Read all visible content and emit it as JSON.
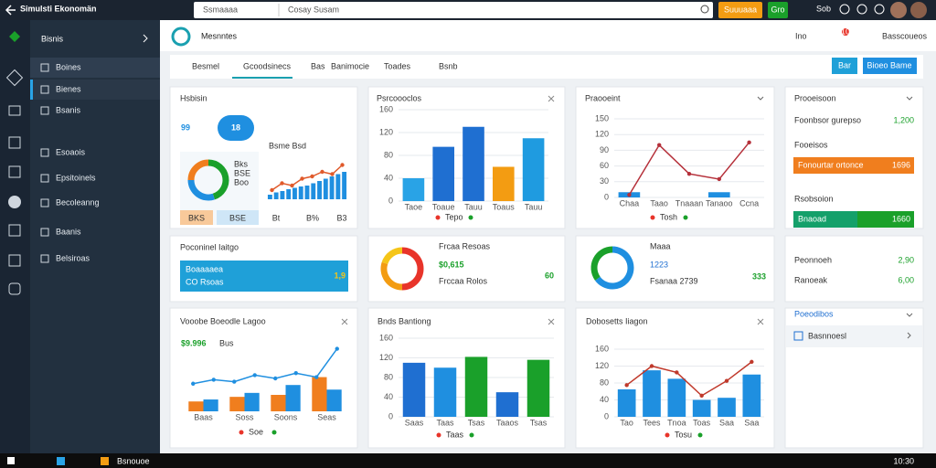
{
  "window": {
    "title": "Simulsti Ekonomän",
    "search_scope": "Ssmaaaa",
    "search": "Cosay Susam",
    "upgrade": "Suuuaaa",
    "badge": "Gro",
    "user": "Sob"
  },
  "sidebar": {
    "title": "Bisnis",
    "items": [
      "Boines",
      "Bienes",
      "Bsanis",
      "Esoaois",
      "Epsitoinels",
      "Becoleanng",
      "Baanis",
      "Belsiroas"
    ]
  },
  "header": {
    "title": "Mesnntes",
    "actions": [
      "Ino",
      "Basscoueos"
    ],
    "notifications": "10"
  },
  "tabs": [
    "Besmel",
    "Gcoodsinecs",
    "Bas",
    "Banimocie",
    "Toades",
    "Bsnb"
  ],
  "tab_buttons": [
    "Bar",
    "Bioeo Bame"
  ],
  "cards": {
    "summary": {
      "title": "Hsbisin",
      "kpi": "99",
      "badge": "18",
      "donut": {
        "values": [
          45,
          30,
          25
        ],
        "colors": [
          "#1aa02a",
          "#1f8fe0",
          "#f07e1e"
        ]
      },
      "legend": [
        "Bks",
        "BSE",
        "Boo"
      ],
      "mini_title": "Bsme Bsd",
      "mini": {
        "ylim": [
          0,
          100
        ],
        "series": [
          {
            "type": "bar",
            "values": [
              10,
              15,
              18,
              22,
              25,
              28,
              30,
              35,
              40,
              45,
              50,
              55,
              60
            ],
            "color": "#1f8fe0"
          },
          {
            "type": "line",
            "values": [
              20,
              35,
              30,
              45,
              50,
              60,
              55,
              75
            ],
            "color": "#e05a2b"
          }
        ]
      },
      "footer": [
        "BKS",
        "BSE",
        "Bt",
        "B%",
        "B3"
      ]
    },
    "revenue": {
      "title": "Psrcoooclos",
      "chart": {
        "ylim": [
          0,
          160
        ],
        "yticks": [
          0,
          40,
          80,
          120,
          160
        ],
        "categories": [
          "Taoe",
          "Toaue",
          "Tauu",
          "Toaus",
          "Tauu"
        ],
        "series": [
          {
            "type": "bar",
            "values": [
              40,
              95,
              130,
              60,
              110
            ],
            "colors": [
              "#29a3e6",
              "#1f6fd1",
              "#1f6fd1",
              "#f39c12",
              "#1f9be0"
            ]
          }
        ]
      },
      "legend": "Tepo"
    },
    "trend": {
      "title": "Praooeint",
      "chart": {
        "ylim": [
          0,
          150
        ],
        "yticks": [
          0,
          30,
          60,
          90,
          120,
          150
        ],
        "categories": [
          "Chaa",
          "Taao",
          "Tnaaan",
          "Tanaoo",
          "Ccna"
        ],
        "series": [
          {
            "type": "bar",
            "values": [
              10,
              null,
              null,
              10,
              null
            ],
            "color": "#1f8fe0"
          },
          {
            "type": "line",
            "values": [
              5,
              100,
              45,
              35,
              105
            ],
            "color": "#b5303a"
          }
        ]
      },
      "legend": "Tosh"
    },
    "profit": {
      "title": "Prooeisoon",
      "row_label": "Foonbsor gurepso",
      "row_value": "1,200",
      "sub": "Fooeisos",
      "bar_label": "Fonourtar ortonce",
      "bar_value": "1696"
    },
    "reduction": {
      "title": "Rsobsoion",
      "bar_label": "Bnaoad",
      "bar_value": "1660"
    },
    "personal": {
      "title": "Poconinel Iaitgo",
      "lines": [
        "Boaaaaea",
        "CO Rsoas"
      ],
      "value": "1,9"
    },
    "sales": {
      "donut": {
        "values": [
          50,
          30,
          20
        ],
        "colors": [
          "#e8342a",
          "#f39c12",
          "#f5c518"
        ]
      },
      "label": "Frcaa Resoas",
      "value": "$0,615",
      "sub": "Frccaa Rolos",
      "big": "60"
    },
    "users": {
      "donut": {
        "values": [
          65,
          35
        ],
        "colors": [
          "#1f8fe0",
          "#1aa02a"
        ]
      },
      "label": "Maaa",
      "value": "1223",
      "sub": "Fsanaa 2739",
      "big": "333"
    },
    "balance": {
      "rows": [
        {
          "label": "Peonnoeh",
          "value": "2,90"
        },
        {
          "label": "Ranoeak",
          "value": "6,00"
        }
      ]
    },
    "volume": {
      "title": "Vooobe Boeodle Lagoo",
      "value": "$9.996",
      "unit": "Bus",
      "chart": {
        "ylim": [
          0,
          100
        ],
        "categories": [
          "Baas",
          "Soss",
          "Soons",
          "Seas"
        ],
        "series": [
          {
            "type": "bar",
            "values": [
              15,
              22,
              25,
              52
            ],
            "color": "#f07e1e"
          },
          {
            "type": "bar",
            "values": [
              18,
              28,
              40,
              33
            ],
            "color": "#1f8fe0"
          },
          {
            "type": "line",
            "values": [
              42,
              48,
              45,
              55,
              50,
              58,
              52,
              95
            ],
            "color": "#1f8fe0"
          }
        ]
      },
      "legend": "Soe"
    },
    "stocks": {
      "title": "Bnds Bantiong",
      "chart": {
        "ylim": [
          0,
          160
        ],
        "yticks": [
          0,
          40,
          80,
          120,
          160
        ],
        "categories": [
          "Saas",
          "Taas",
          "Tsas",
          "Taaos",
          "Tsas"
        ],
        "series": [
          {
            "type": "bar",
            "values": [
              110,
              100,
              122,
              50,
              116
            ],
            "colors": [
              "#1f6fd1",
              "#1f8fe0",
              "#1aa02a",
              "#1f6fd1",
              "#1aa02a"
            ]
          }
        ]
      },
      "legend": "Taas"
    },
    "growth": {
      "title": "Dobosetts Iiagon",
      "chart": {
        "ylim": [
          0,
          160
        ],
        "yticks": [
          0,
          40,
          80,
          120,
          160
        ],
        "categories": [
          "Tao",
          "Tees",
          "Tnoa",
          "Toas",
          "Saa",
          "Saa"
        ],
        "series": [
          {
            "type": "bar",
            "values": [
              65,
              110,
              90,
              40,
              45,
              100
            ],
            "color": "#1f8fe0"
          },
          {
            "type": "line",
            "values": [
              75,
              120,
              105,
              50,
              85,
              130
            ],
            "color": "#c0392b"
          }
        ]
      },
      "legend": "Tosu"
    },
    "settings": {
      "title": "Poeodibos",
      "item": "Basnnoesl"
    }
  },
  "taskbar": {
    "app": "Bsnouoe",
    "clock": "10:30"
  }
}
